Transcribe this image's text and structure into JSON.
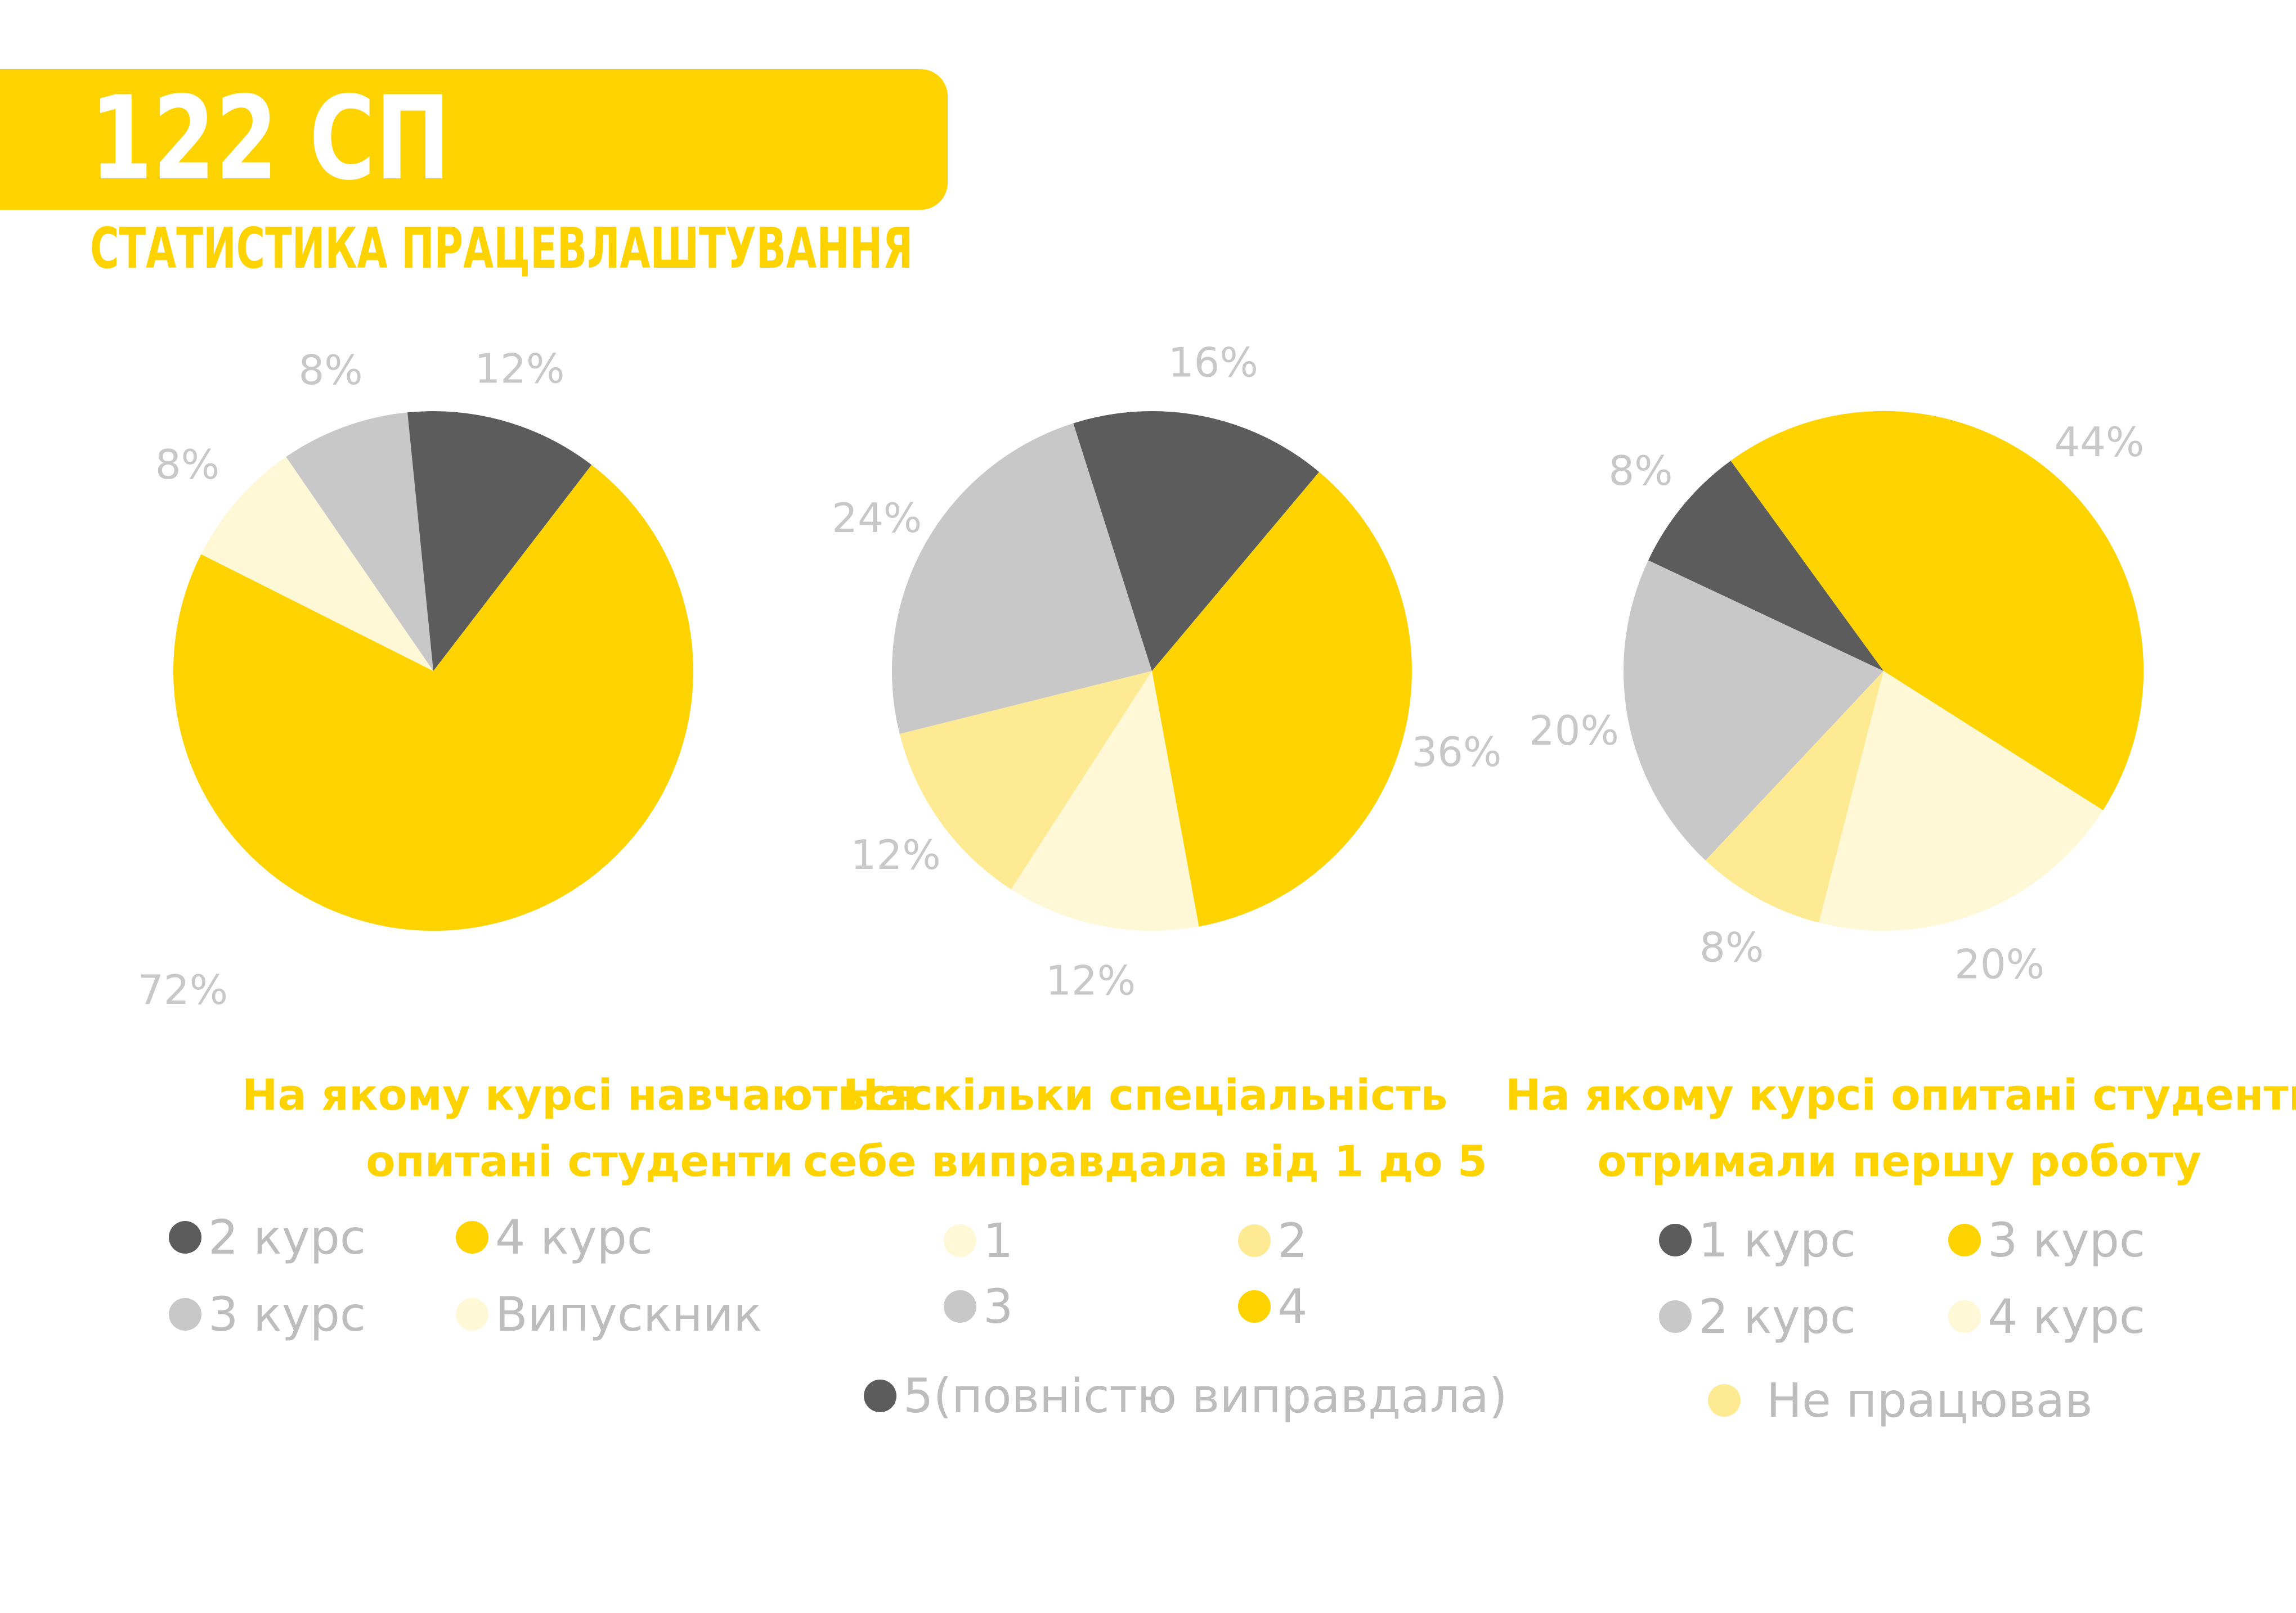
{
  "header": {
    "title": "122 СП",
    "subtitle": "СТАТИСТИКА ПРАЦЕВЛАШТУВАННЯ"
  },
  "colors": {
    "yellow": "#FFD300",
    "dark_gray": "#5C5C5C",
    "light_gray": "#C8C8C8",
    "pale_yellow": "#FFF8D6",
    "light_yellow": "#FFEA94",
    "label_gray": "#C8C8C8"
  },
  "chart_data": [
    {
      "type": "pie",
      "title": "На якому курсі навчаються опитані студенти",
      "title_lines": [
        "На якому курсі навчаються",
        "опитані студенти"
      ],
      "series": [
        {
          "name": "4 курс",
          "value": 72,
          "label": "72%",
          "color": "#FFD300"
        },
        {
          "name": "Випускник",
          "value": 8,
          "label": "8%",
          "color": "#FFF8D6"
        },
        {
          "name": "3 курс",
          "value": 8,
          "label": "8%",
          "color": "#C8C8C8"
        },
        {
          "name": "2 курс",
          "value": 12,
          "label": "12%",
          "color": "#5C5C5C"
        }
      ],
      "legend": [
        {
          "label": "2 курс",
          "color": "#5C5C5C"
        },
        {
          "label": "4 курс",
          "color": "#FFD300"
        },
        {
          "label": "3 курс",
          "color": "#C8C8C8"
        },
        {
          "label": "Випускник",
          "color": "#FFF8D6"
        }
      ]
    },
    {
      "type": "pie",
      "title": "Наскільки спеціальність себе виправдала від 1 до 5",
      "title_lines": [
        "Наскільки спеціальність",
        "себе виправдала від 1 до 5"
      ],
      "series": [
        {
          "name": "4",
          "value": 36,
          "label": "36%",
          "color": "#FFD300"
        },
        {
          "name": "1",
          "value": 12,
          "label": "12%",
          "color": "#FFF8D6"
        },
        {
          "name": "2",
          "value": 12,
          "label": "12%",
          "color": "#FFEA94"
        },
        {
          "name": "3",
          "value": 24,
          "label": "24%",
          "color": "#C8C8C8"
        },
        {
          "name": "5(повністю виправдала)",
          "value": 16,
          "label": "16%",
          "color": "#5C5C5C"
        }
      ],
      "legend": [
        {
          "label": "1",
          "color": "#FFF8D6"
        },
        {
          "label": "2",
          "color": "#FFEA94"
        },
        {
          "label": "3",
          "color": "#C8C8C8"
        },
        {
          "label": "4",
          "color": "#FFD300"
        },
        {
          "label": "5(повністю виправдала)",
          "color": "#5C5C5C"
        }
      ]
    },
    {
      "type": "pie",
      "title": "На якому курсі опитані студенти отримали першу роботу",
      "title_lines": [
        "На якому курсі опитані студенти",
        "отримали першу роботу"
      ],
      "series": [
        {
          "name": "3 курс",
          "value": 44,
          "label": "44%",
          "color": "#FFD300"
        },
        {
          "name": "4 курс",
          "value": 20,
          "label": "20%",
          "color": "#FFF8D6"
        },
        {
          "name": "Не працював",
          "value": 8,
          "label": "8%",
          "color": "#FFEA94"
        },
        {
          "name": "2 курс",
          "value": 20,
          "label": "20%",
          "color": "#C8C8C8"
        },
        {
          "name": "1 курс",
          "value": 8,
          "label": "8%",
          "color": "#5C5C5C"
        }
      ],
      "legend": [
        {
          "label": "1 курс",
          "color": "#5C5C5C"
        },
        {
          "label": "3 курс",
          "color": "#FFD300"
        },
        {
          "label": "2 курс",
          "color": "#C8C8C8"
        },
        {
          "label": "4 курс",
          "color": "#FFF8D6"
        },
        {
          "label": "Не працював",
          "color": "#FFEA94"
        }
      ]
    }
  ]
}
